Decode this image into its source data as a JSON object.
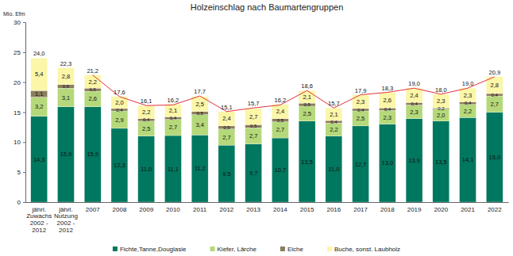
{
  "chart_data": {
    "type": "bar",
    "title": "Holzeinschlag nach Baumartengruppen",
    "y_label": "Mio. Efm",
    "categories": [
      "jährl. Zuwachs 2002 - 2012",
      "jährl. Nutzung 2002 - 2012",
      "2007",
      "2008",
      "2009",
      "2010",
      "2011",
      "2012",
      "2013",
      "2014",
      "2015",
      "2016",
      "2017",
      "2018",
      "2019",
      "2020",
      "2021",
      "2022"
    ],
    "stacked": true,
    "data_labels": true,
    "grid": false,
    "legend": "bottom",
    "ylim": [
      0,
      30
    ],
    "yticks": [
      0,
      5,
      10,
      15,
      20,
      25,
      30
    ],
    "series": [
      {
        "name": "Fichte,Tanne,Douglasie",
        "color": "#00785f",
        "values": [
          14.3,
          15.9,
          15.9,
          12.3,
          11.0,
          11.1,
          11.2,
          9.5,
          9.7,
          10.7,
          13.5,
          11.0,
          12.7,
          13.0,
          13.9,
          13.5,
          14.1,
          15.0
        ],
        "value_labels": [
          "14,3",
          "15,9",
          "15,9",
          "12,3",
          "11,0",
          "11,1",
          "11,2",
          "9,5",
          "9,7",
          "10,7",
          "13,5",
          "11,0",
          "12,7",
          "13,0",
          "13,9",
          "13,5",
          "14,1",
          "15,0"
        ]
      },
      {
        "name": "Kiefer, Lärche",
        "color": "#b5d97a",
        "values": [
          3.2,
          3.1,
          2.6,
          2.9,
          2.5,
          2.7,
          3.4,
          2.7,
          2.7,
          2.7,
          2.5,
          2.2,
          2.5,
          2.3,
          2.3,
          2.0,
          2.2,
          2.7
        ],
        "value_labels": [
          "3,2",
          "3,1",
          "2,6",
          "2,9",
          "2,5",
          "2,7",
          "3,4",
          "2,7",
          "2,7",
          "2,7",
          "2,5",
          "2,2",
          "2,5",
          "2,3",
          "2,3",
          "2,0",
          "2,2",
          "2,7"
        ]
      },
      {
        "name": "Eiche",
        "color": "#8b7d5e",
        "values": [
          1.1,
          0.6,
          0.5,
          0.4,
          0.4,
          0.4,
          0.5,
          0.5,
          0.5,
          0.5,
          0.5,
          0.4,
          0.4,
          0.4,
          0.4,
          0.2,
          0.4,
          0.4
        ],
        "value_labels": [
          "1,1",
          "0,6",
          "0,5",
          "0,4",
          "0,4",
          "0,4",
          "0,5",
          "0,5",
          "0,5",
          "0,5",
          "0,5",
          "0,4",
          "0,4",
          "0,4",
          "0,4",
          "0,2",
          "0,4",
          "0,4"
        ]
      },
      {
        "name": "Buche, sonst. Laubholz",
        "color": "#fbf6a8",
        "values": [
          5.4,
          2.8,
          2.2,
          2.0,
          2.2,
          2.1,
          2.5,
          2.4,
          2.7,
          2.4,
          2.1,
          2.1,
          2.3,
          2.6,
          2.4,
          2.3,
          2.3,
          2.8
        ],
        "value_labels": [
          "5,4",
          "2,8",
          "2,2",
          "2,0",
          "2,2",
          "2,1",
          "2,5",
          "2,4",
          "2,7",
          "2,4",
          "2,1",
          "2,1",
          "2,3",
          "2,6",
          "2,4",
          "2,3",
          "2,3",
          "2,8"
        ]
      },
      {
        "type": "line",
        "color": "#e0323c",
        "values": [
          null,
          null,
          21.2,
          17.6,
          16.1,
          16.2,
          17.7,
          15.1,
          15.7,
          16.2,
          18.6,
          15.7,
          17.9,
          18.3,
          19.0,
          18.0,
          19.0,
          20.9
        ]
      }
    ],
    "totals": {
      "values": [
        24.0,
        22.3,
        21.2,
        17.6,
        16.1,
        16.2,
        17.7,
        15.1,
        15.7,
        16.2,
        18.6,
        15.7,
        17.9,
        18.3,
        19.0,
        18.0,
        19.0,
        20.9
      ],
      "value_labels": [
        "24,0",
        "22,3",
        "21,2",
        "17,6",
        "16,1",
        "16,2",
        "17,7",
        "15,1",
        "15,7",
        "16,2",
        "18,6",
        "15,7",
        "17,9",
        "18,3",
        "19,0",
        "18,0",
        "19,0",
        "20,9"
      ]
    }
  }
}
